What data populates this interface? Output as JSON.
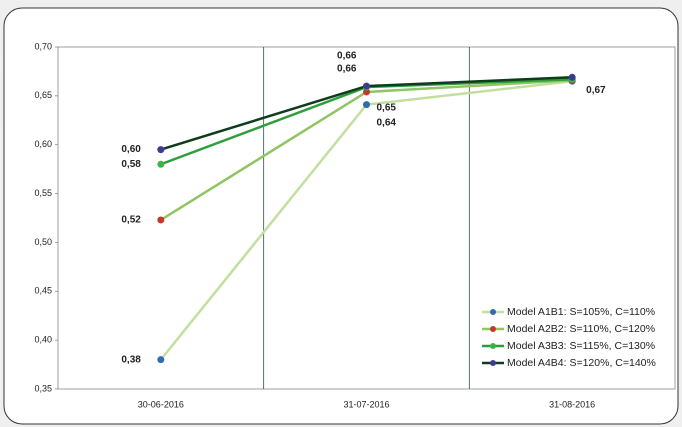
{
  "chart_data": {
    "type": "line",
    "categories": [
      "30-06-2016",
      "31-07-2016",
      "31-08-2016"
    ],
    "ylim": [
      0.35,
      0.7
    ],
    "yticks": [
      {
        "value": 0.35,
        "label": "0,35"
      },
      {
        "value": 0.4,
        "label": "0,40"
      },
      {
        "value": 0.45,
        "label": "0,45"
      },
      {
        "value": 0.5,
        "label": "0,50"
      },
      {
        "value": 0.55,
        "label": "0,55"
      },
      {
        "value": 0.6,
        "label": "0,60"
      },
      {
        "value": 0.65,
        "label": "0,65"
      },
      {
        "value": 0.7,
        "label": "0,70"
      }
    ],
    "legend": "bottom-right",
    "series": [
      {
        "name": "Model A1B1: S=105%, C=110%",
        "color": "#c3df9f",
        "marker_color": "#2f6db3",
        "values": [
          0.38,
          0.641,
          0.665
        ],
        "value_labels": [
          "0,38",
          "0,64",
          null
        ]
      },
      {
        "name": "Model A2B2: S=110%, C=120%",
        "color": "#8fc563",
        "marker_color": "#c0392b",
        "values": [
          0.523,
          0.654,
          0.666
        ],
        "value_labels": [
          "0,52",
          "0,65",
          null
        ]
      },
      {
        "name": "Model A3B3: S=115%, C=130%",
        "color": "#2e9e3c",
        "marker_color": "#3bb54a",
        "values": [
          0.58,
          0.659,
          0.667
        ],
        "value_labels": [
          "0,58",
          "0,66",
          null
        ]
      },
      {
        "name": "Model A4B4: S=120%, C=140%",
        "color": "#0f3d1c",
        "marker_color": "#3b3b8f",
        "values": [
          0.595,
          0.66,
          0.669
        ],
        "value_labels": [
          "0,60",
          "0,66",
          "0,67"
        ]
      }
    ]
  }
}
